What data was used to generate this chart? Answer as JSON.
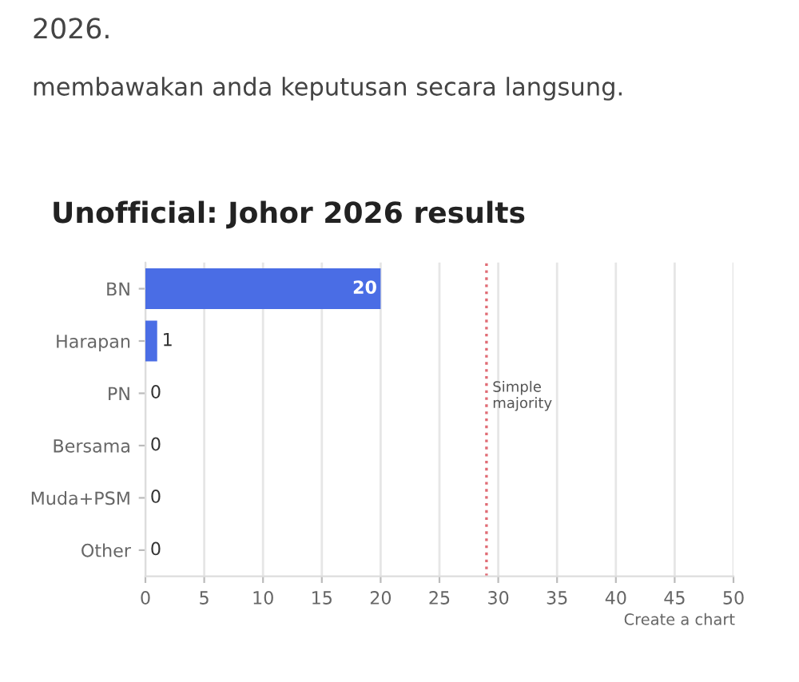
{
  "chart_data": {
    "type": "bar",
    "orientation": "horizontal",
    "title": "Unofficial: Johor 2026 results",
    "categories": [
      "BN",
      "Harapan",
      "PN",
      "Bersama",
      "Muda+PSM",
      "Other"
    ],
    "values": [
      20,
      1,
      0,
      0,
      0,
      0
    ],
    "color": "#4a6de5",
    "data_labels": true,
    "xlim": [
      0,
      50
    ],
    "xticks": [
      0,
      5,
      10,
      15,
      20,
      25,
      30,
      35,
      40,
      45,
      50
    ],
    "grid": "x",
    "ref_lines": [
      {
        "axis": "x",
        "value": 29,
        "label": "Simple\nmajority",
        "color": "#e06c75",
        "line_style": "dotted"
      }
    ],
    "annotations": [
      "2026.",
      "membawakan anda keputusan secara langsung.",
      "Create a chart"
    ]
  }
}
